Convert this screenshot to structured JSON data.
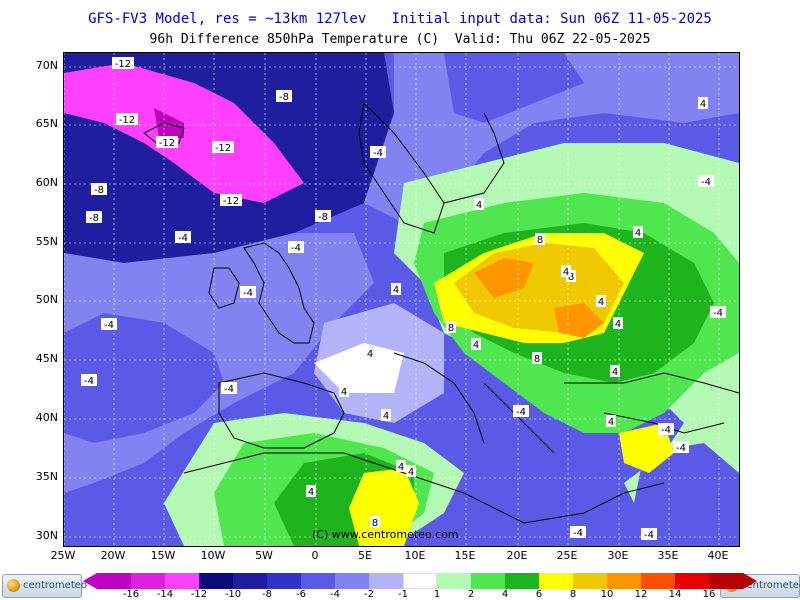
{
  "header": {
    "title_line1": "GFS-FV3 Model, res = ~13km 127lev   Initial input data: Sun 06Z 11-05-2025",
    "title_line2": "96h Difference 850hPa Temperature (C)  Valid: Thu 06Z 22-05-2025"
  },
  "axes": {
    "lat_labels": [
      "70N",
      "65N",
      "60N",
      "55N",
      "50N",
      "45N",
      "40N",
      "35N",
      "30N"
    ],
    "lon_labels": [
      "25W",
      "20W",
      "15W",
      "10W",
      "5W",
      "0",
      "5E",
      "10E",
      "15E",
      "20E",
      "25E",
      "30E",
      "35E",
      "40E"
    ]
  },
  "contour_labels": [
    "-12",
    "-12",
    "-8",
    "-12",
    "-12",
    "-8",
    "-8",
    "-4",
    "-4",
    "-12",
    "-8",
    "-4",
    "-4",
    "-4",
    "-4",
    "-4",
    "4",
    "4",
    "4",
    "8",
    "8",
    "8",
    "4",
    "4",
    "4",
    "4",
    "8",
    "4",
    "4",
    "-4",
    "4",
    "4",
    "4",
    "4",
    "8",
    "-4",
    "-4",
    "-4",
    "-4",
    "-4",
    "4",
    "4",
    "4",
    "-4"
  ],
  "copyright": "(C) www.centrometeo.com",
  "colorbar": {
    "labels": [
      "-16",
      "-14",
      "-12",
      "-10",
      "-8",
      "-6",
      "-4",
      "-2",
      "-1",
      "1",
      "2",
      "4",
      "6",
      "8",
      "10",
      "12",
      "14",
      "16"
    ],
    "colors": [
      "#c000c0",
      "#e020e0",
      "#ff40ff",
      "#0a0a78",
      "#1e1e9e",
      "#3232c8",
      "#5a5ae6",
      "#8282f0",
      "#b4b4fa",
      "#ffffff",
      "#b4fab4",
      "#50e650",
      "#1eb41e",
      "#ffff00",
      "#f0c800",
      "#ff9600",
      "#ff5000",
      "#e60000",
      "#b40000"
    ],
    "under_color": "#c000c0",
    "over_color": "#b40000"
  },
  "logos": {
    "left": "centrometeo",
    "right": "centrometeo"
  },
  "map_colors": {
    "magenta": "#ff40ff",
    "dark_blue": "#1e1e9e",
    "blue": "#3232c8",
    "mid_blue": "#5a5ae6",
    "light_blue": "#8282f0",
    "pale_blue": "#b4b4fa",
    "white": "#ffffff",
    "pale_green": "#b4fab4",
    "green": "#50e650",
    "dark_green": "#1eb41e",
    "yellow": "#ffff00",
    "gold": "#f0c800",
    "orange": "#ff9600",
    "red_orange": "#ff5000"
  }
}
